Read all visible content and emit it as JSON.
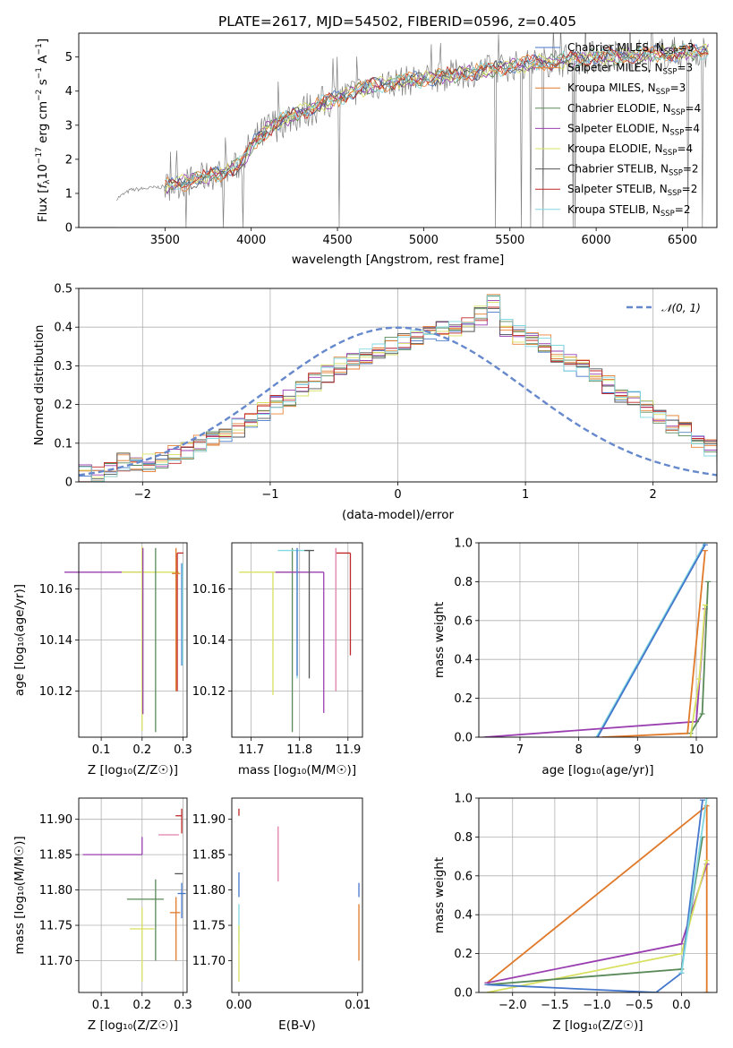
{
  "figure": {
    "title": "PLATE=2617, MJD=54502, FIBERID=0596, z=0.405"
  },
  "colors": {
    "Chabrier MILES": "#4477cc",
    "Salpeter MILES": "#e8833a",
    "Kroupa MILES": "#e07a2a",
    "Chabrier ELODIE": "#5a8a5a",
    "Salpeter ELODIE": "#9a3fb0",
    "Kroupa ELODIE": "#d8e060",
    "Chabrier STELIB": "#555555",
    "Salpeter STELIB": "#c0282a",
    "Kroupa STELIB": "#80d8e0",
    "data": "#808080",
    "normal": "#6688cc",
    "pinkpoint": "#e080a8"
  },
  "chart_data": [
    {
      "id": "spectrum",
      "type": "line",
      "title": "PLATE=2617, MJD=54502, FIBERID=0596, z=0.405",
      "xlabel": "wavelength [Angstrom, rest frame]",
      "ylabel": "Flux [f_λ 10^-17 erg cm^-2 s^-1 A^-1]",
      "xlim": [
        3000,
        6700
      ],
      "ylim": [
        0,
        5.7
      ],
      "xticks": [
        3500,
        4000,
        4500,
        5000,
        5500,
        6000,
        6500
      ],
      "yticks": [
        0,
        1,
        2,
        3,
        4,
        5
      ],
      "grid": false,
      "legend_position": "right",
      "legend": [
        "Chabrier MILES, N_SSP=3",
        "Salpeter MILES, N_SSP=3",
        "Kroupa MILES, N_SSP=3",
        "Chabrier ELODIE, N_SSP=4",
        "Salpeter ELODIE, N_SSP=4",
        "Kroupa ELODIE, N_SSP=4",
        "Chabrier STELIB, N_SSP=2",
        "Salpeter STELIB, N_SSP=2",
        "Kroupa STELIB, N_SSP=2"
      ],
      "continuum": {
        "x": [
          3220,
          3300,
          3400,
          3500,
          3600,
          3700,
          3800,
          3900,
          3950,
          4000,
          4100,
          4200,
          4300,
          4400,
          4500,
          4600,
          4700,
          4800,
          4900,
          5000,
          5200,
          5400,
          5600,
          5800,
          6000,
          6200,
          6400,
          6600
        ],
        "y": [
          0.85,
          1.1,
          1.15,
          1.2,
          1.3,
          1.45,
          1.55,
          1.75,
          1.9,
          2.4,
          2.9,
          3.2,
          3.4,
          3.6,
          3.8,
          4.0,
          4.15,
          4.25,
          4.3,
          4.35,
          4.5,
          4.65,
          4.8,
          4.9,
          5.0,
          5.05,
          5.1,
          5.15
        ]
      }
    },
    {
      "id": "residuals",
      "type": "histogram",
      "xlabel": "(data-model)/error",
      "ylabel": "Normed distribution",
      "xlim": [
        -2.5,
        2.5
      ],
      "ylim": [
        0,
        0.5
      ],
      "xticks": [
        -2,
        -1,
        0,
        1,
        2
      ],
      "yticks": [
        0.0,
        0.1,
        0.2,
        0.3,
        0.4,
        0.5
      ],
      "grid": true,
      "legend_position": "top-right",
      "legend": [
        "N(0,1)"
      ],
      "bin_width": 0.1,
      "bins_start": -2.5,
      "representative_values": [
        0.02,
        0.02,
        0.03,
        0.05,
        0.04,
        0.05,
        0.06,
        0.07,
        0.08,
        0.1,
        0.11,
        0.12,
        0.14,
        0.16,
        0.18,
        0.2,
        0.22,
        0.24,
        0.26,
        0.28,
        0.3,
        0.31,
        0.32,
        0.34,
        0.35,
        0.36,
        0.37,
        0.38,
        0.39,
        0.4,
        0.41,
        0.43,
        0.46,
        0.4,
        0.38,
        0.37,
        0.36,
        0.33,
        0.31,
        0.29,
        0.27,
        0.25,
        0.23,
        0.21,
        0.19,
        0.17,
        0.15,
        0.13,
        0.11,
        0.09,
        0.07
      ],
      "normal_curve": {
        "mu": 0,
        "sigma": 1
      }
    },
    {
      "id": "age-vs-Z",
      "type": "errorbar",
      "xlabel": "Z [log10(Z/Z☉)]",
      "ylabel": "age  [log10(age/yr)]",
      "xlim": [
        0.045,
        0.31
      ],
      "ylim": [
        10.102,
        10.178
      ],
      "xticks": [
        0.1,
        0.2,
        0.3
      ],
      "yticks": [
        10.12,
        10.14,
        10.16
      ],
      "grid": true,
      "points": [
        {
          "model": "Salpeter ELODIE",
          "x": 0.2,
          "y": 10.1665,
          "xerr": [
            0.19,
            0.0
          ],
          "yerr": [
            0.0,
            0.0
          ]
        },
        {
          "model": "Kroupa ELODIE",
          "x": 0.2,
          "y": 10.1665,
          "xerr": [
            0.05,
            0.09
          ],
          "yerr": [
            0.062,
            0.01
          ]
        },
        {
          "model": "Salpeter ELODIE",
          "x": 0.202,
          "y": 10.16,
          "xerr": [
            0,
            0
          ],
          "yerr": [
            0.049,
            0.016
          ]
        },
        {
          "model": "Chabrier ELODIE",
          "x": 0.233,
          "y": 10.16,
          "xerr": [
            0,
            0
          ],
          "yerr": [
            0.056,
            0.016
          ]
        },
        {
          "model": "Salpeter STELIB",
          "x": 0.286,
          "y": 10.174,
          "xerr": [
            0,
            0.015
          ],
          "yerr": [
            0.054,
            0
          ]
        },
        {
          "model": "Kroupa MILES",
          "x": 0.283,
          "y": 10.166,
          "xerr": [
            0.01,
            0.01
          ],
          "yerr": [
            0.046,
            0.01
          ]
        },
        {
          "model": "Chabrier MILES",
          "x": 0.297,
          "y": 10.15,
          "xerr": [
            0,
            0
          ],
          "yerr": [
            0.02,
            0.02
          ]
        },
        {
          "model": "Kroupa STELIB",
          "x": 0.299,
          "y": 10.15,
          "xerr": [
            0,
            0
          ],
          "yerr": [
            0.02,
            0.02
          ]
        }
      ]
    },
    {
      "id": "age-vs-mass",
      "type": "errorbar",
      "xlabel": "mass [log10(M/M☉)]",
      "ylabel": "",
      "xlim": [
        11.66,
        11.93
      ],
      "ylim": [
        10.102,
        10.178
      ],
      "xticks": [
        11.7,
        11.8,
        11.9
      ],
      "yticks": [
        10.12,
        10.14,
        10.16
      ],
      "grid": true,
      "points": [
        {
          "model": "Kroupa ELODIE",
          "x": 11.745,
          "y": 10.1665,
          "xerr": [
            0.07,
            0.05
          ],
          "yerr": [
            0.048,
            0.0
          ]
        },
        {
          "model": "Chabrier ELODIE",
          "x": 11.785,
          "y": 10.16,
          "xerr": [
            0.0,
            0.0
          ],
          "yerr": [
            0.056,
            0.016
          ]
        },
        {
          "model": "Salpeter ELODIE",
          "x": 11.85,
          "y": 10.1665,
          "xerr": [
            0.1,
            0.0
          ],
          "yerr": [
            0.055,
            0.0
          ]
        },
        {
          "model": "Salpeter STELIB",
          "x": 11.905,
          "y": 10.174,
          "xerr": [
            0.03,
            0.0
          ],
          "yerr": [
            0.04,
            0.0
          ]
        },
        {
          "model": "Kroupa STELIB",
          "x": 11.795,
          "y": 10.175,
          "xerr": [
            0.04,
            0.03
          ],
          "yerr": [
            0.05,
            0.0
          ]
        },
        {
          "model": "Chabrier STELIB",
          "x": 11.82,
          "y": 10.175,
          "xerr": [
            0.01,
            0.01
          ],
          "yerr": [
            0.05,
            0.0
          ]
        },
        {
          "model": "pink",
          "x": 11.875,
          "y": 10.166,
          "xerr": [
            0.0,
            0.0
          ],
          "yerr": [
            0.046,
            0.01
          ]
        },
        {
          "model": "Chabrier MILES",
          "x": 11.795,
          "y": 10.166,
          "xerr": [
            0.0,
            0.0
          ],
          "yerr": [
            0.04,
            0.01
          ]
        }
      ]
    },
    {
      "id": "weight-vs-age",
      "type": "line",
      "xlabel": "age  [log10(age/yr)]",
      "ylabel": "mass weight",
      "xlim": [
        6.3,
        10.35
      ],
      "ylim": [
        0,
        1.0
      ],
      "xticks": [
        7,
        8,
        9,
        10
      ],
      "yticks": [
        0.0,
        0.2,
        0.4,
        0.6,
        0.8,
        1.0
      ],
      "grid": true,
      "series": [
        {
          "model": "Kroupa STELIB",
          "x": [
            8.3,
            10.15
          ],
          "y": [
            0.0,
            1.0
          ]
        },
        {
          "model": "Chabrier MILES",
          "x": [
            8.32,
            10.15
          ],
          "y": [
            0.0,
            0.99
          ]
        },
        {
          "model": "Salpeter ELODIE",
          "x": [
            6.4,
            10.0,
            10.15
          ],
          "y": [
            0.0,
            0.08,
            0.66
          ]
        },
        {
          "model": "Kroupa MILES",
          "x": [
            8.4,
            9.85,
            10.15
          ],
          "y": [
            0.0,
            0.02,
            0.96
          ]
        },
        {
          "model": "Chabrier ELODIE",
          "x": [
            9.9,
            10.1,
            10.2
          ],
          "y": [
            0.02,
            0.12,
            0.8
          ]
        },
        {
          "model": "Kroupa ELODIE",
          "x": [
            9.9,
            10.05,
            10.15
          ],
          "y": [
            0.0,
            0.3,
            0.68
          ]
        }
      ]
    },
    {
      "id": "mass-vs-Z",
      "type": "errorbar",
      "xlabel": "Z [log10(Z/Z☉)]",
      "ylabel": "mass [log10(M/M☉)]",
      "xlim": [
        0.045,
        0.31
      ],
      "ylim": [
        11.655,
        11.93
      ],
      "xticks": [
        0.1,
        0.2,
        0.3
      ],
      "yticks": [
        11.7,
        11.75,
        11.8,
        11.85,
        11.9
      ],
      "grid": true,
      "points": [
        {
          "model": "Salpeter ELODIE",
          "x": 0.2,
          "y": 11.85,
          "xerr": [
            0.145,
            0.0
          ],
          "yerr": [
            0.0,
            0.025
          ]
        },
        {
          "model": "Kroupa ELODIE",
          "x": 0.2,
          "y": 11.745,
          "xerr": [
            0.03,
            0.03
          ],
          "yerr": [
            0.075,
            0.03
          ]
        },
        {
          "model": "Chabrier ELODIE",
          "x": 0.233,
          "y": 11.787,
          "xerr": [
            0.07,
            0.02
          ],
          "yerr": [
            0.087,
            0.028
          ]
        },
        {
          "model": "pink",
          "x": 0.27,
          "y": 11.878,
          "xerr": [
            0.03,
            0.02
          ],
          "yerr": [
            0.0,
            0.0
          ]
        },
        {
          "model": "Kroupa MILES",
          "x": 0.283,
          "y": 11.768,
          "xerr": [
            0.015,
            0.01
          ],
          "yerr": [
            0.068,
            0.022
          ]
        },
        {
          "model": "Salpeter STELIB",
          "x": 0.297,
          "y": 11.905,
          "xerr": [
            0.015,
            0.0
          ],
          "yerr": [
            0.025,
            0.01
          ]
        },
        {
          "model": "Chabrier STELIB",
          "x": 0.29,
          "y": 11.823,
          "xerr": [
            0.01,
            0.01
          ],
          "yerr": [
            0.0,
            0.0
          ]
        },
        {
          "model": "Chabrier MILES",
          "x": 0.297,
          "y": 11.795,
          "xerr": [
            0.01,
            0.01
          ],
          "yerr": [
            0.035,
            0.015
          ]
        }
      ]
    },
    {
      "id": "mass-vs-EBV",
      "type": "errorbar",
      "xlabel": "E(B-V)",
      "ylabel": "",
      "xlim": [
        -0.0006,
        0.0104
      ],
      "ylim": [
        11.655,
        11.93
      ],
      "xticks": [
        0.0,
        0.01
      ],
      "xticklabels": [
        "0.00",
        "0.01"
      ],
      "yticks": [
        11.7,
        11.75,
        11.8,
        11.85,
        11.9
      ],
      "grid": false,
      "points": [
        {
          "model": "Salpeter STELIB",
          "x": 0.0,
          "y": 11.905,
          "xerr": [
            0,
            0
          ],
          "yerr": [
            0.0,
            0.01
          ]
        },
        {
          "model": "Chabrier MILES",
          "x": 0.0,
          "y": 11.81,
          "xerr": [
            0,
            0
          ],
          "yerr": [
            0.02,
            0.015
          ]
        },
        {
          "model": "Kroupa STELIB",
          "x": 0.0,
          "y": 11.76,
          "xerr": [
            0,
            0
          ],
          "yerr": [
            0.035,
            0.02
          ]
        },
        {
          "model": "Kroupa ELODIE",
          "x": 0.0,
          "y": 11.72,
          "xerr": [
            0,
            0
          ],
          "yerr": [
            0.05,
            0.03
          ]
        },
        {
          "model": "pink",
          "x": 0.0033,
          "y": 11.85,
          "xerr": [
            0,
            0
          ],
          "yerr": [
            0.038,
            0.04
          ]
        },
        {
          "model": "Kroupa MILES",
          "x": 0.0101,
          "y": 11.74,
          "xerr": [
            0,
            0
          ],
          "yerr": [
            0.04,
            0.04
          ]
        },
        {
          "model": "Chabrier MILES",
          "x": 0.0101,
          "y": 11.8,
          "xerr": [
            0,
            0
          ],
          "yerr": [
            0.01,
            0.01
          ]
        }
      ]
    },
    {
      "id": "weight-vs-Z",
      "type": "line",
      "xlabel": "Z [log10(Z/Z☉)]",
      "ylabel": "mass weight",
      "xlim": [
        -2.4,
        0.42
      ],
      "ylim": [
        0,
        1.0
      ],
      "xticks": [
        -2.0,
        -1.5,
        -1.0,
        -0.5,
        0.0
      ],
      "xticklabels": [
        "−2.0",
        "−1.5",
        "−1.0",
        "−0.5",
        "0.0"
      ],
      "yticks": [
        0.0,
        0.2,
        0.4,
        0.6,
        0.8,
        1.0
      ],
      "grid": true,
      "series": [
        {
          "model": "Kroupa MILES",
          "x": [
            -2.3,
            0.3,
            0.3
          ],
          "y": [
            0.05,
            0.96,
            0.0
          ]
        },
        {
          "model": "Salpeter ELODIE",
          "x": [
            -2.3,
            0.0,
            0.3
          ],
          "y": [
            0.05,
            0.25,
            0.66
          ]
        },
        {
          "model": "Kroupa ELODIE",
          "x": [
            -2.3,
            0.0,
            0.3
          ],
          "y": [
            0.0,
            0.2,
            0.68
          ]
        },
        {
          "model": "Chabrier ELODIE",
          "x": [
            -2.3,
            0.0,
            0.25
          ],
          "y": [
            0.04,
            0.12,
            0.8
          ]
        },
        {
          "model": "Chabrier MILES",
          "x": [
            -2.3,
            -0.3,
            0.0,
            0.25
          ],
          "y": [
            0.04,
            0.0,
            0.1,
            0.99
          ]
        },
        {
          "model": "Kroupa STELIB",
          "x": [
            0.0,
            0.3
          ],
          "y": [
            0.1,
            1.0
          ]
        }
      ]
    }
  ]
}
